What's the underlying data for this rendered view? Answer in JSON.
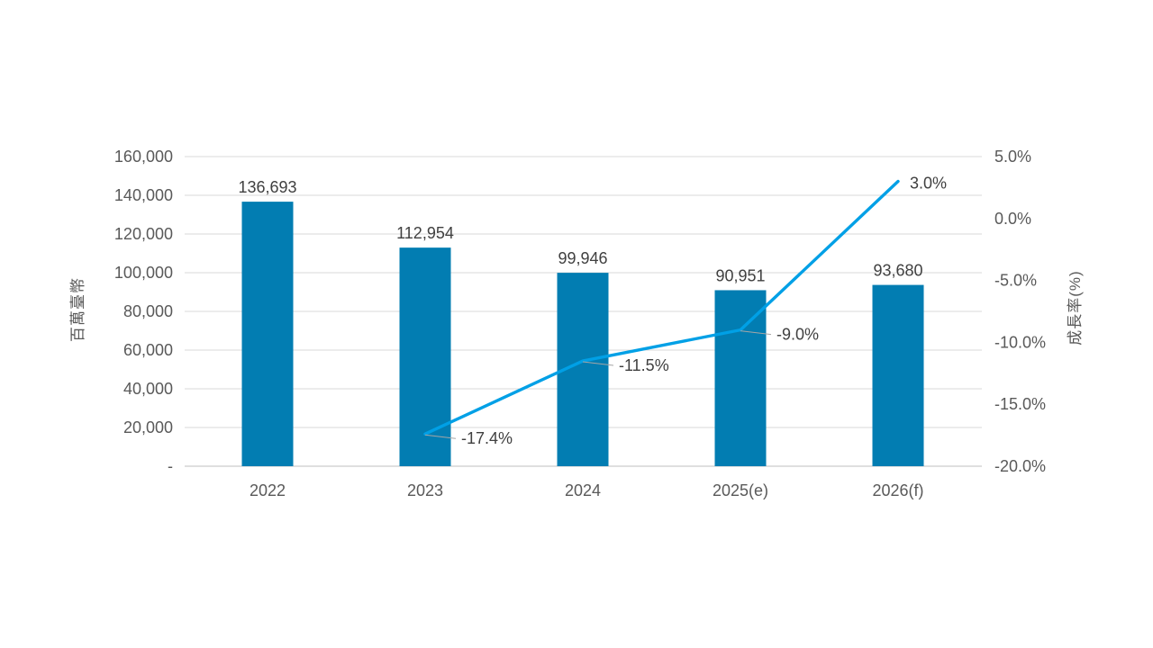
{
  "chart_data": {
    "type": "combo-bar-line",
    "title": "",
    "categories": [
      "2022",
      "2023",
      "2024",
      "2025(e)",
      "2026(f)"
    ],
    "series": [
      {
        "id": "bar-series",
        "type": "bar",
        "axis": "left",
        "values": [
          136693,
          112954,
          99946,
          90951,
          93680
        ],
        "labels": [
          "136,693",
          "112,954",
          "99,946",
          "90,951",
          "93,680"
        ],
        "color": "#027DB2"
      },
      {
        "id": "line-series",
        "type": "line",
        "axis": "right",
        "values": [
          null,
          -17.4,
          -11.5,
          -9.0,
          3.0
        ],
        "labels": [
          null,
          "-17.4%",
          "-11.5%",
          "-9.0%",
          "3.0%"
        ],
        "color": "#00A0E6"
      }
    ],
    "left_axis": {
      "label": "百萬臺幣",
      "min": 0,
      "max": 160000,
      "ticks": [
        "160,000",
        "140,000",
        "120,000",
        "100,000",
        "80,000",
        "60,000",
        "40,000",
        "20,000",
        "-"
      ]
    },
    "right_axis": {
      "label": "成長率(%)",
      "min": -20,
      "max": 5,
      "ticks": [
        "5.0%",
        "0.0%",
        "-5.0%",
        "-10.0%",
        "-15.0%",
        "-20.0%"
      ]
    },
    "grid": true,
    "legend": "none",
    "colors": {
      "background": "#FFFFFF",
      "grid": "#D9D9D9",
      "baseline": "#BFBFBF",
      "tick_text": "#595959",
      "data_label": "#404040",
      "leader_line": "#A6A6A6",
      "bar": "#027DB2",
      "line": "#00A0E6"
    }
  }
}
